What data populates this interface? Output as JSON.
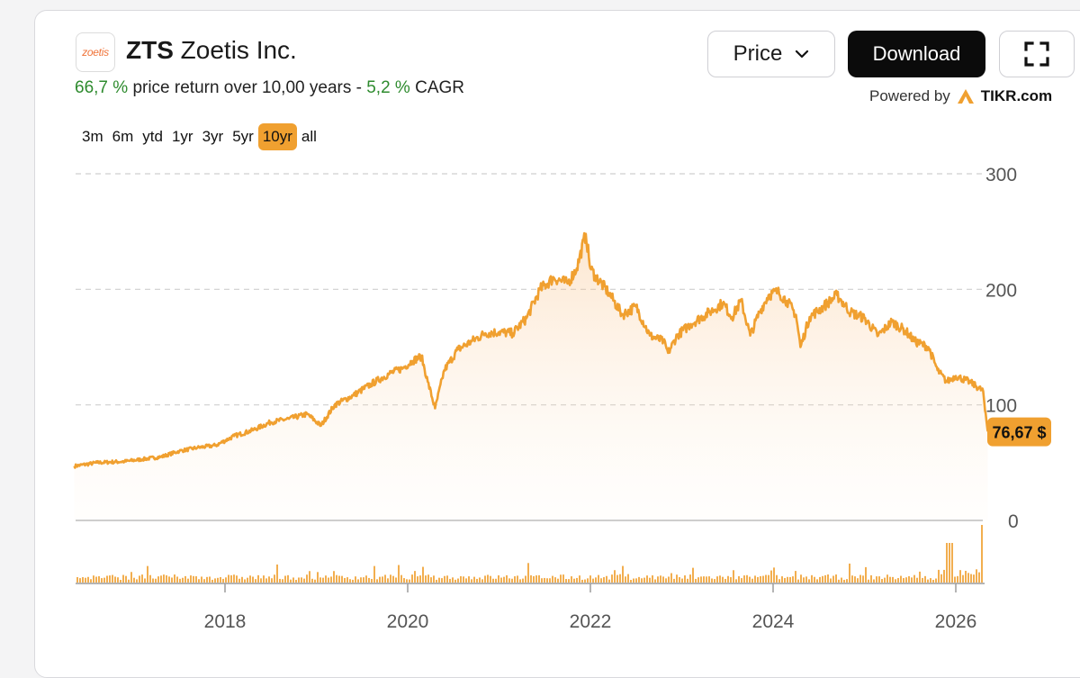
{
  "header": {
    "logo_text": "zoetis",
    "ticker": "ZTS",
    "company": "Zoetis Inc.",
    "return_pct": "66,7 %",
    "return_text": "price return over 10,00 years -",
    "cagr_pct": "5,2 %",
    "cagr_label": "CAGR"
  },
  "controls": {
    "price_label": "Price",
    "download_label": "Download",
    "powered_by": "Powered by",
    "brand": "TIKR.com"
  },
  "ranges": [
    {
      "label": "3m",
      "active": false
    },
    {
      "label": "6m",
      "active": false
    },
    {
      "label": "ytd",
      "active": false
    },
    {
      "label": "1yr",
      "active": false
    },
    {
      "label": "3yr",
      "active": false
    },
    {
      "label": "5yr",
      "active": false
    },
    {
      "label": "10yr",
      "active": true
    },
    {
      "label": "all",
      "active": false
    }
  ],
  "colors": {
    "line": "#f0a030",
    "badge": "#f0a030",
    "active_range": "#f0a030",
    "positive": "#2e8b2e"
  },
  "chart_data": {
    "type": "area",
    "title": "",
    "xlabel": "",
    "ylabel": "",
    "ylim": [
      0,
      300
    ],
    "yticks": [
      0,
      100,
      200,
      300
    ],
    "xticks": [
      "2018",
      "2020",
      "2022",
      "2024",
      "2026"
    ],
    "grid": "horizontal dashed",
    "last_value": 76.67,
    "last_label": "76,67 $",
    "series": [
      {
        "x": [
          2016.35,
          2016.6,
          2016.9,
          2017.1,
          2017.3,
          2017.5,
          2017.7,
          2017.9,
          2018.1,
          2018.3,
          2018.5,
          2018.7,
          2018.9,
          2019.05,
          2019.2,
          2019.4,
          2019.6,
          2019.8,
          2019.95,
          2020.05,
          2020.15,
          2020.22,
          2020.3,
          2020.4,
          2020.55,
          2020.7,
          2020.85,
          2021.0,
          2021.15,
          2021.3,
          2021.45,
          2021.6,
          2021.75,
          2021.85,
          2021.95,
          2022.0,
          2022.05,
          2022.2,
          2022.35,
          2022.5,
          2022.65,
          2022.8,
          2022.85,
          2022.95,
          2023.1,
          2023.3,
          2023.45,
          2023.55,
          2023.65,
          2023.75,
          2023.85,
          2023.95,
          2024.05,
          2024.15,
          2024.25,
          2024.3,
          2024.4,
          2024.55,
          2024.7,
          2024.75,
          2024.85,
          2025.0,
          2025.15,
          2025.3,
          2025.45,
          2025.55,
          2025.7,
          2025.8,
          2025.9,
          2026.0,
          2026.15,
          2026.3,
          2026.32,
          2026.35
        ],
        "y": [
          47,
          50,
          51,
          53,
          55,
          60,
          63,
          65,
          73,
          78,
          85,
          88,
          92,
          82,
          100,
          108,
          118,
          127,
          132,
          138,
          142,
          120,
          97,
          130,
          148,
          155,
          162,
          163,
          162,
          175,
          200,
          210,
          205,
          218,
          248,
          218,
          212,
          197,
          178,
          185,
          160,
          155,
          145,
          160,
          170,
          180,
          188,
          176,
          190,
          160,
          180,
          195,
          198,
          190,
          178,
          150,
          176,
          185,
          195,
          190,
          180,
          175,
          160,
          172,
          164,
          155,
          150,
          130,
          120,
          125,
          120,
          112,
          95,
          77
        ]
      }
    ]
  }
}
